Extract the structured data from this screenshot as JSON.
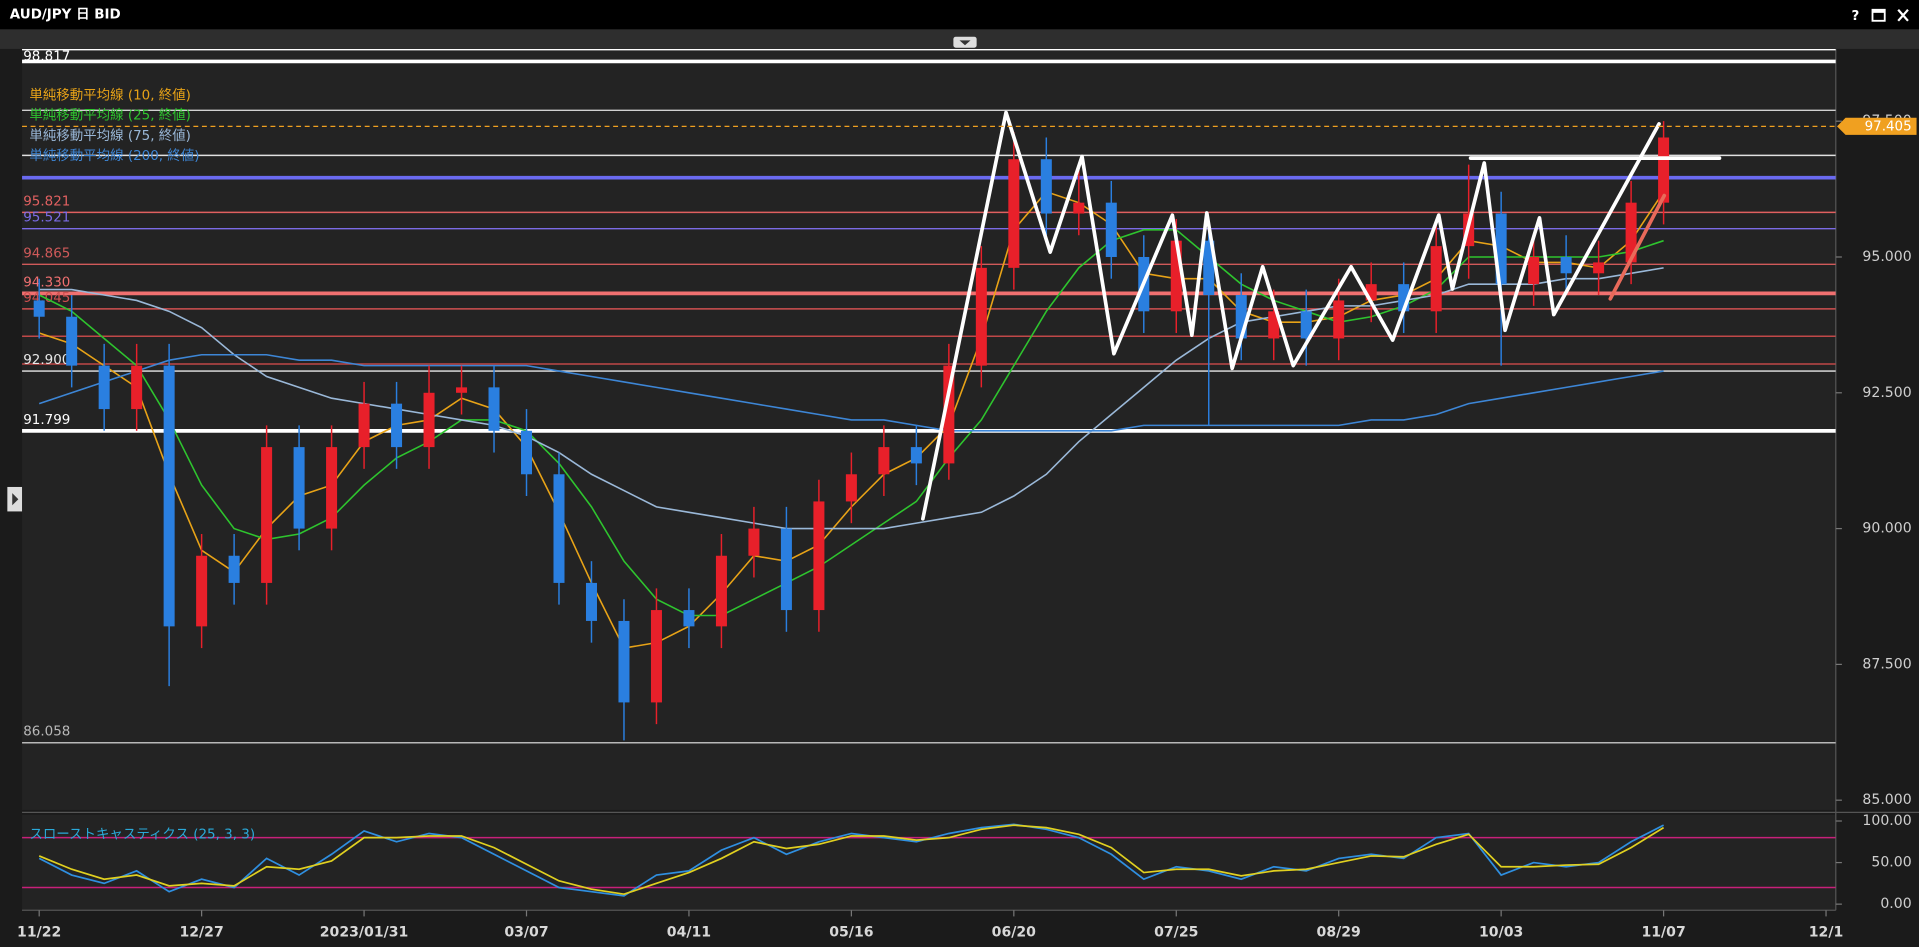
{
  "window": {
    "title": "AUD/JPY 日 BID",
    "help": "?"
  },
  "chart_data": [
    {
      "type": "candlestick",
      "x": [
        0,
        5,
        10,
        15,
        20,
        25,
        30,
        35,
        40,
        45,
        50,
        55,
        60,
        65,
        70,
        75,
        80,
        85,
        90,
        95,
        100,
        105,
        110,
        115,
        120,
        125,
        130,
        135,
        140,
        145,
        150,
        155,
        160,
        165,
        170,
        175,
        180,
        185,
        190,
        195,
        200,
        205,
        210,
        215,
        220,
        225,
        230,
        235,
        240,
        245,
        250
      ],
      "open": [
        94.2,
        93.9,
        93.0,
        92.2,
        93.0,
        88.2,
        89.5,
        89.0,
        91.5,
        90.0,
        91.5,
        92.3,
        91.5,
        92.5,
        92.6,
        91.8,
        91.0,
        89.0,
        88.3,
        86.8,
        88.5,
        88.2,
        89.5,
        90.0,
        88.5,
        90.5,
        91.0,
        91.5,
        91.2,
        93.0,
        94.8,
        96.8,
        95.8,
        96.0,
        95.0,
        94.0,
        95.3,
        94.3,
        93.5,
        94.0,
        93.5,
        94.2,
        94.5,
        94.0,
        95.2,
        95.8,
        94.5,
        95.0,
        94.7,
        94.9,
        96.0
      ],
      "high": [
        94.6,
        94.3,
        93.4,
        93.4,
        93.4,
        89.9,
        89.9,
        91.9,
        91.9,
        91.9,
        92.7,
        92.7,
        93.0,
        93.0,
        93.0,
        92.2,
        91.4,
        89.4,
        88.7,
        88.9,
        88.9,
        89.9,
        90.4,
        90.4,
        90.9,
        91.4,
        91.9,
        91.9,
        93.4,
        95.2,
        97.3,
        97.2,
        96.6,
        96.4,
        95.4,
        95.7,
        95.7,
        94.7,
        94.4,
        94.4,
        94.6,
        94.9,
        94.9,
        95.6,
        96.7,
        96.2,
        95.4,
        95.4,
        95.3,
        96.4,
        97.5
      ],
      "low": [
        93.5,
        92.6,
        91.8,
        91.8,
        87.1,
        87.8,
        88.6,
        88.6,
        89.6,
        89.6,
        91.1,
        91.1,
        91.1,
        92.1,
        91.4,
        90.6,
        88.6,
        87.9,
        86.1,
        86.4,
        87.8,
        87.8,
        89.1,
        88.1,
        88.1,
        90.1,
        90.6,
        90.8,
        90.9,
        92.6,
        94.4,
        95.4,
        95.4,
        94.6,
        93.6,
        93.6,
        91.9,
        93.1,
        93.1,
        93.0,
        93.1,
        93.8,
        93.6,
        93.6,
        94.6,
        93.0,
        94.1,
        94.3,
        94.3,
        94.5,
        95.6
      ],
      "close": [
        93.9,
        93.0,
        92.2,
        93.0,
        88.2,
        89.5,
        89.0,
        91.5,
        90.0,
        91.5,
        92.3,
        91.5,
        92.5,
        92.6,
        91.8,
        91.0,
        89.0,
        88.3,
        86.8,
        88.5,
        88.2,
        89.5,
        90.0,
        88.5,
        90.5,
        91.0,
        91.5,
        91.2,
        93.0,
        94.8,
        96.8,
        95.8,
        96.0,
        95.0,
        94.0,
        95.3,
        94.3,
        93.5,
        94.0,
        93.5,
        94.2,
        94.5,
        94.0,
        95.2,
        95.8,
        94.5,
        95.0,
        94.7,
        94.9,
        96.0,
        97.2
      ],
      "up_color": "#e8202a",
      "down_color": "#2a7fe0",
      "overlays": [
        {
          "name": "単純移動平均線 (10, 終値)",
          "color": "#e8a317",
          "values": [
            93.6,
            93.4,
            93.0,
            92.6,
            91.0,
            89.6,
            89.2,
            90.0,
            90.6,
            90.8,
            91.6,
            91.9,
            92.0,
            92.4,
            92.2,
            91.5,
            90.3,
            89.0,
            87.8,
            87.9,
            88.2,
            88.8,
            89.5,
            89.4,
            89.7,
            90.4,
            91.0,
            91.3,
            91.9,
            93.5,
            95.5,
            96.2,
            96.0,
            95.6,
            94.7,
            94.6,
            94.6,
            94.0,
            93.8,
            93.8,
            93.9,
            94.2,
            94.3,
            94.6,
            95.3,
            95.2,
            94.9,
            94.9,
            94.8,
            95.3,
            96.2
          ]
        },
        {
          "name": "単純移動平均線 (25, 終値)",
          "color": "#2ec42e",
          "values": [
            94.3,
            94.0,
            93.5,
            93.0,
            92.0,
            90.8,
            90.0,
            89.8,
            89.9,
            90.2,
            90.8,
            91.3,
            91.6,
            92.0,
            92.0,
            91.8,
            91.2,
            90.4,
            89.4,
            88.7,
            88.4,
            88.4,
            88.7,
            89.0,
            89.3,
            89.7,
            90.1,
            90.5,
            91.3,
            92.0,
            93.0,
            94.0,
            94.8,
            95.3,
            95.5,
            95.5,
            95.0,
            94.5,
            94.2,
            94.0,
            93.8,
            93.9,
            94.1,
            94.4,
            95.0,
            95.0,
            95.0,
            95.0,
            95.0,
            95.1,
            95.3
          ]
        },
        {
          "name": "単純移動平均線 (75, 終値)",
          "color": "#9ab8d8",
          "values": [
            94.4,
            94.4,
            94.3,
            94.2,
            94.0,
            93.7,
            93.2,
            92.8,
            92.6,
            92.4,
            92.3,
            92.2,
            92.1,
            92.0,
            91.9,
            91.7,
            91.4,
            91.0,
            90.7,
            90.4,
            90.3,
            90.2,
            90.1,
            90.0,
            90.0,
            90.0,
            90.0,
            90.1,
            90.2,
            90.3,
            90.6,
            91.0,
            91.6,
            92.1,
            92.6,
            93.1,
            93.5,
            93.8,
            93.9,
            94.0,
            94.1,
            94.1,
            94.2,
            94.3,
            94.5,
            94.5,
            94.5,
            94.6,
            94.6,
            94.7,
            94.8
          ]
        },
        {
          "name": "単純移動平均線 (200, 終値)",
          "color": "#3d86d6",
          "values": [
            92.3,
            92.5,
            92.7,
            92.9,
            93.1,
            93.2,
            93.2,
            93.2,
            93.1,
            93.1,
            93.0,
            93.0,
            93.0,
            93.0,
            93.0,
            93.0,
            92.9,
            92.8,
            92.7,
            92.6,
            92.5,
            92.4,
            92.3,
            92.2,
            92.1,
            92.0,
            92.0,
            91.9,
            91.8,
            91.8,
            91.8,
            91.8,
            91.8,
            91.8,
            91.9,
            91.9,
            91.9,
            91.9,
            91.9,
            91.9,
            91.9,
            92.0,
            92.0,
            92.1,
            92.3,
            92.4,
            92.5,
            92.6,
            92.7,
            92.8,
            92.9
          ]
        }
      ],
      "levels": [
        {
          "value": 98.817,
          "label": "98.817",
          "color": "#ffffff"
        },
        {
          "value": 98.6,
          "color": "#ffffff",
          "thick": true
        },
        {
          "value": 97.7,
          "color": "#d0d0d0"
        },
        {
          "value": 96.87,
          "color": "#e0e0e0"
        },
        {
          "value": 96.46,
          "color": "#6a6af0",
          "thick": true
        },
        {
          "value": 95.821,
          "label": "95.821",
          "color": "#e06060"
        },
        {
          "value": 95.521,
          "label": "95.521",
          "color": "#7b6be6"
        },
        {
          "value": 94.865,
          "label": "94.865",
          "color": "#d05a5a"
        },
        {
          "value": 94.33,
          "label": "94.330",
          "color": "#f07070",
          "thick": true
        },
        {
          "value": 94.045,
          "label": "94.045",
          "color": "#d05050"
        },
        {
          "value": 93.54,
          "color": "#c04848"
        },
        {
          "value": 93.03,
          "color": "#c04848"
        },
        {
          "value": 92.9,
          "label": "92.900",
          "color": "#e8e8e8"
        },
        {
          "value": 91.799,
          "label": "91.799",
          "color": "#ffffff",
          "thick": true
        },
        {
          "value": 86.058,
          "label": "86.058",
          "color": "#b8b8b8"
        }
      ],
      "drawings": [
        {
          "color": "#ffffff",
          "x": [
            136.0,
            148.8,
            155.6,
            160.5,
            165.4,
            174.4,
            177.4,
            179.7,
            183.6,
            188.3,
            193.0,
            201.9,
            208.3,
            215.4,
            217.5,
            222.4,
            225.6,
            230.9,
            233.1,
            249.3
          ],
          "y": [
            90.18,
            97.66,
            95.09,
            96.85,
            93.22,
            95.77,
            93.56,
            95.81,
            92.95,
            94.82,
            93.0,
            94.82,
            93.47,
            95.77,
            94.41,
            96.73,
            93.65,
            95.72,
            93.94,
            97.45
          ]
        },
        {
          "color": "#ffffff",
          "x": [
            220.3,
            258.6
          ],
          "y": [
            96.82,
            96.82
          ]
        },
        {
          "color": "#e86a5a",
          "x": [
            241.8,
            250.1
          ],
          "y": [
            94.23,
            96.13
          ]
        }
      ],
      "last_price": 97.405,
      "last_price_label": "97.405",
      "last_price_color": "#f0a020",
      "xlim": [
        -2.64,
        276.5
      ],
      "ylim": [
        84.82,
        98.83
      ],
      "yticks": [
        {
          "value": 85,
          "label": "85.000"
        },
        {
          "value": 87.5,
          "label": "87.500"
        },
        {
          "value": 90,
          "label": "90.000"
        },
        {
          "value": 92.5,
          "label": "92.500"
        },
        {
          "value": 95,
          "label": "95.000"
        },
        {
          "value": 97.5,
          "label": "97.500"
        }
      ]
    },
    {
      "type": "line",
      "title": "スローストキャスティクス (25, 3, 3)",
      "title_color": "#2aa9d9",
      "x": [
        0,
        5,
        10,
        15,
        20,
        25,
        30,
        35,
        40,
        45,
        50,
        55,
        60,
        65,
        70,
        75,
        80,
        85,
        90,
        95,
        100,
        105,
        110,
        115,
        120,
        125,
        130,
        135,
        140,
        145,
        150,
        155,
        160,
        165,
        170,
        175,
        180,
        185,
        190,
        195,
        200,
        205,
        210,
        215,
        220,
        225,
        230,
        235,
        240,
        245,
        250
      ],
      "series": [
        {
          "color": "#2f8fe0",
          "values": [
            55,
            35,
            25,
            40,
            15,
            30,
            20,
            55,
            35,
            60,
            88,
            75,
            85,
            80,
            60,
            40,
            20,
            15,
            10,
            35,
            40,
            65,
            80,
            60,
            75,
            85,
            80,
            75,
            85,
            92,
            96,
            90,
            80,
            60,
            30,
            45,
            40,
            30,
            45,
            40,
            55,
            60,
            55,
            80,
            85,
            35,
            50,
            45,
            50,
            75,
            95
          ]
        },
        {
          "color": "#e0d020",
          "values": [
            58,
            42,
            30,
            35,
            22,
            25,
            22,
            45,
            42,
            52,
            80,
            80,
            82,
            82,
            68,
            48,
            28,
            18,
            12,
            25,
            38,
            55,
            75,
            67,
            72,
            82,
            82,
            77,
            80,
            90,
            95,
            92,
            84,
            68,
            38,
            42,
            42,
            34,
            40,
            42,
            50,
            58,
            57,
            72,
            84,
            45,
            45,
            47,
            48,
            68,
            92
          ]
        }
      ],
      "hlines": [
        {
          "value": 80,
          "color": "#c8207a"
        },
        {
          "value": 20,
          "color": "#c8207a"
        }
      ],
      "xlim": [
        -2.64,
        276.5
      ],
      "ylim": [
        -7.4,
        107.4
      ],
      "yticks": [
        {
          "value": 0,
          "label": "0.00"
        },
        {
          "value": 50,
          "label": "50.00"
        },
        {
          "value": 100,
          "label": "100.00"
        }
      ],
      "xticks": [
        {
          "value": 0,
          "label": "11/22"
        },
        {
          "value": 25,
          "label": "12/27"
        },
        {
          "value": 50,
          "label": "2023/01/31"
        },
        {
          "value": 75,
          "label": "03/07"
        },
        {
          "value": 100,
          "label": "04/11"
        },
        {
          "value": 125,
          "label": "05/16"
        },
        {
          "value": 150,
          "label": "06/20"
        },
        {
          "value": 175,
          "label": "07/25"
        },
        {
          "value": 200,
          "label": "08/29"
        },
        {
          "value": 225,
          "label": "10/03"
        },
        {
          "value": 250,
          "label": "11/07"
        },
        {
          "value": 275,
          "label": "12/1"
        }
      ]
    }
  ]
}
